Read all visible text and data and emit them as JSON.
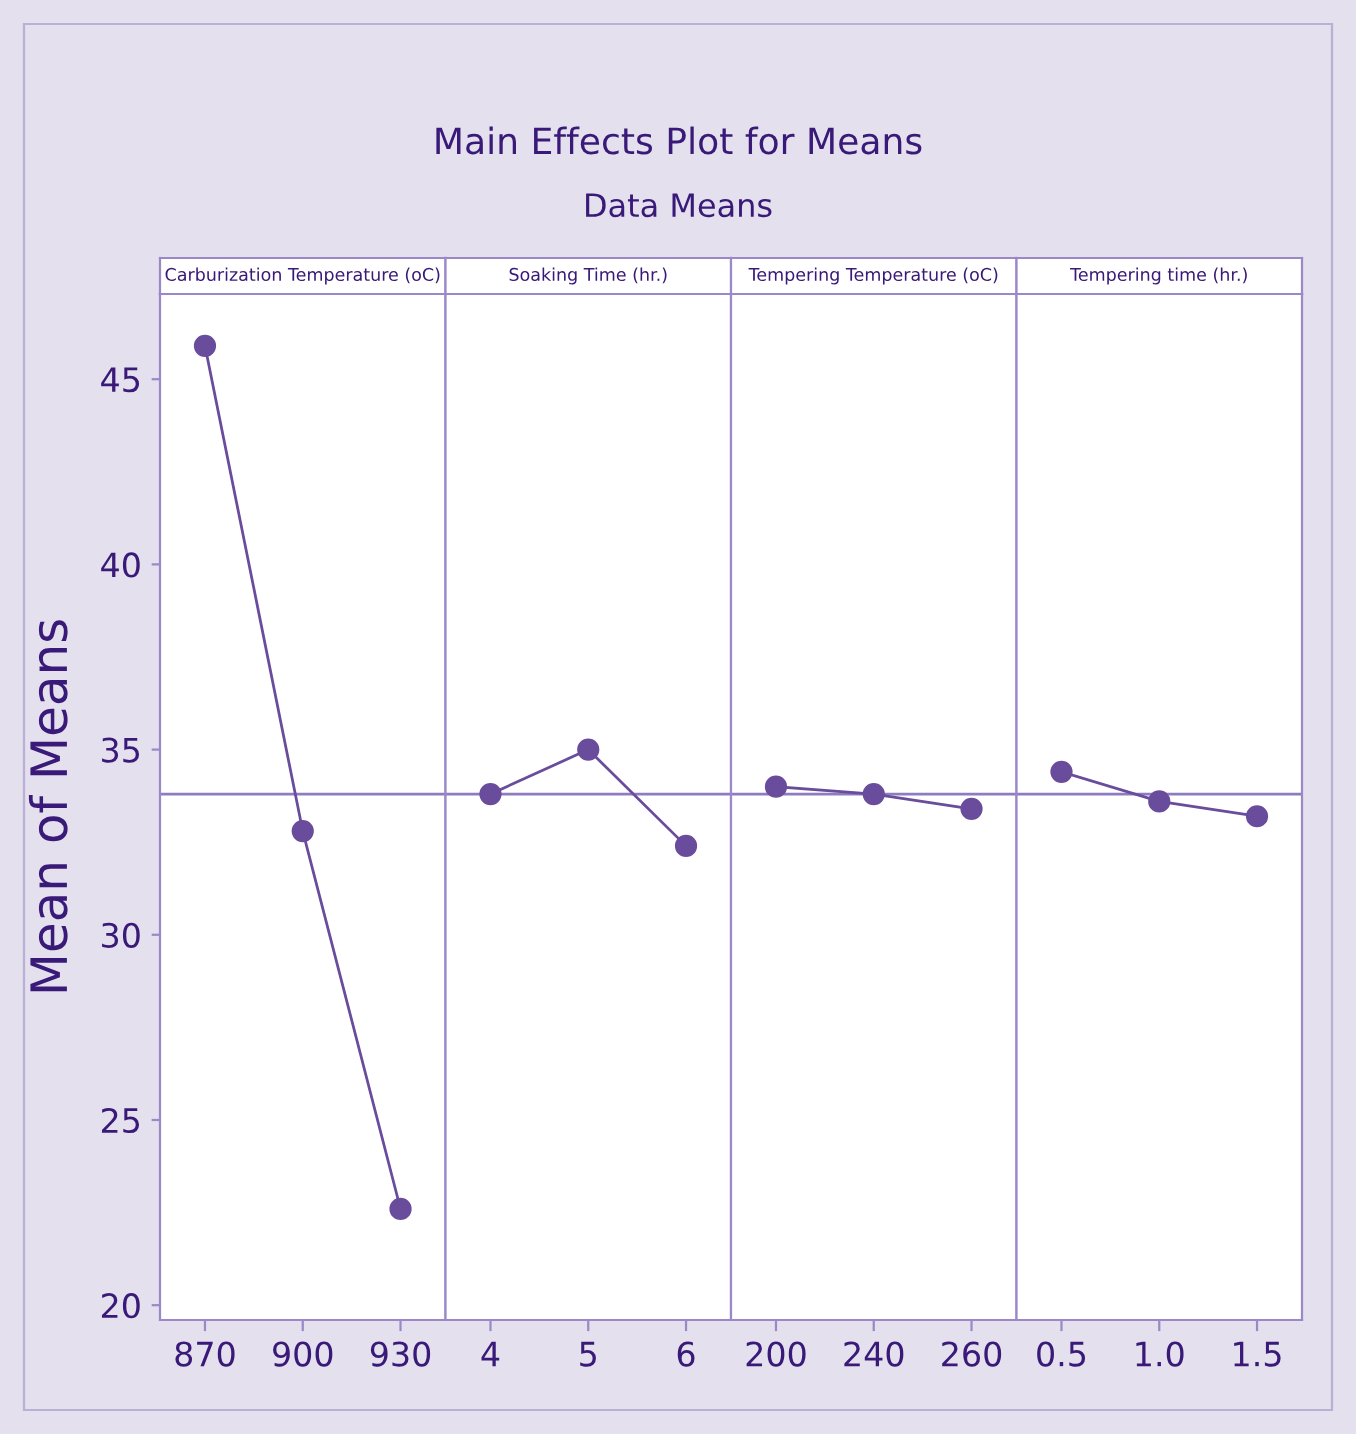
{
  "chart_data": [
    {
      "type": "other",
      "title": "Main Effects Plot for Means",
      "subtitle": "Data Means"
    },
    {
      "type": "line",
      "title": "Carburization Temperature (oC)",
      "ylabel": "Mean of Means",
      "categories": [
        "870",
        "900",
        "930"
      ],
      "series": [
        {
          "color": "#6a4c9c",
          "values": [
            45.9,
            32.8,
            22.6
          ]
        }
      ],
      "ylim": [
        19.6,
        47.3
      ],
      "yticks": [
        20,
        25,
        30,
        35,
        40,
        45
      ],
      "ref_lines": [
        {
          "axis": "y",
          "value": 33.8,
          "color": "#8f7cc0"
        }
      ],
      "marker": "circle",
      "grid": false,
      "legend": false
    },
    {
      "type": "line",
      "title": "Soaking Time (hr.)",
      "categories": [
        "4",
        "5",
        "6"
      ],
      "series": [
        {
          "color": "#6a4c9c",
          "values": [
            33.8,
            35.0,
            32.4
          ]
        }
      ],
      "ylim": [
        19.6,
        47.3
      ],
      "tick_labels": "x",
      "ref_lines": [
        {
          "axis": "y",
          "value": 33.8,
          "color": "#8f7cc0"
        }
      ],
      "marker": "circle",
      "grid": false,
      "legend": false
    },
    {
      "type": "line",
      "title": "Tempering Temperature (oC)",
      "categories": [
        "200",
        "240",
        "260"
      ],
      "series": [
        {
          "color": "#6a4c9c",
          "values": [
            34.0,
            33.8,
            33.4
          ]
        }
      ],
      "ylim": [
        19.6,
        47.3
      ],
      "tick_labels": "x",
      "ref_lines": [
        {
          "axis": "y",
          "value": 33.8,
          "color": "#8f7cc0"
        }
      ],
      "marker": "circle",
      "grid": false,
      "legend": false
    },
    {
      "type": "line",
      "title": "Tempering time (hr.)",
      "categories": [
        "0.5",
        "1.0",
        "1.5"
      ],
      "series": [
        {
          "color": "#6a4c9c",
          "values": [
            34.4,
            33.6,
            33.2
          ]
        }
      ],
      "ylim": [
        19.6,
        47.3
      ],
      "tick_labels": "x",
      "ref_lines": [
        {
          "axis": "y",
          "value": 33.8,
          "color": "#8f7cc0"
        }
      ],
      "marker": "circle",
      "grid": false,
      "legend": false
    }
  ]
}
